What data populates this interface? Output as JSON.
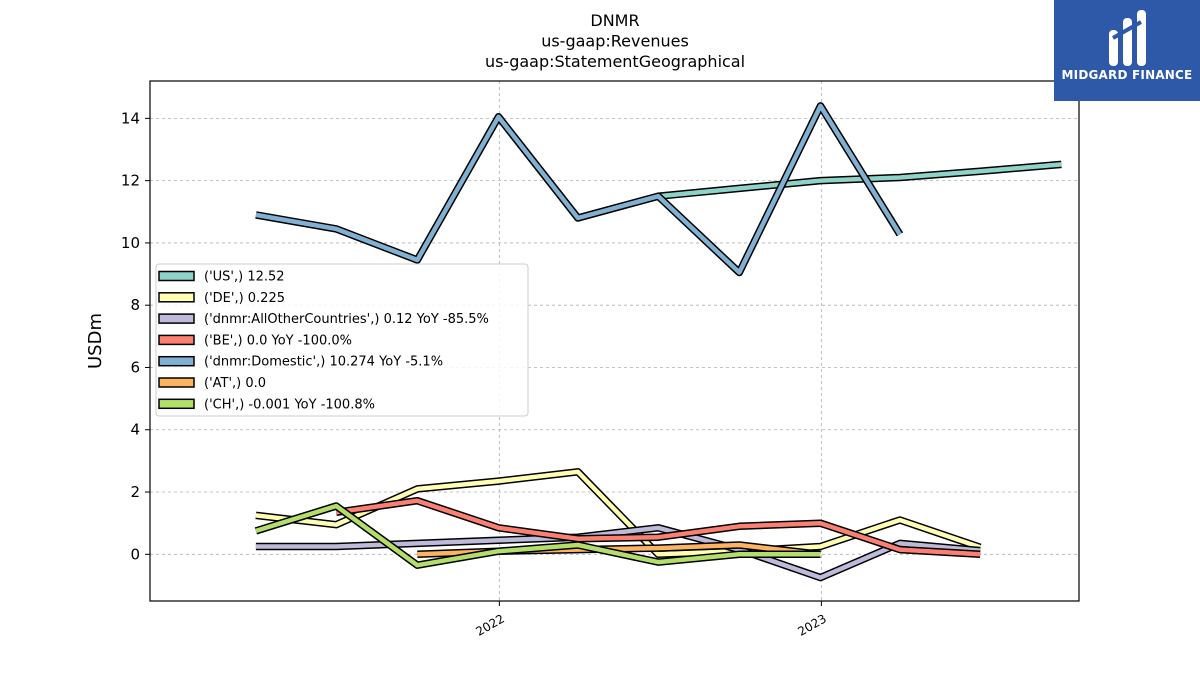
{
  "chart_data": {
    "type": "line",
    "title_lines": [
      "DNMR",
      "us-gaap:Revenues",
      "us-gaap:StatementGeographical"
    ],
    "xlabel": "",
    "ylabel": "USDm",
    "x_ticks": [
      "2022",
      "2023"
    ],
    "y_ticks": [
      "0",
      "2",
      "4",
      "6",
      "8",
      "10",
      "12",
      "14"
    ],
    "ylim": [
      -1.5,
      15.2
    ],
    "grid": true,
    "legend_position": "center-left",
    "series": [
      {
        "name": "('US',) 12.52",
        "color": "#8dd3c7",
        "x": [
          "2022-06-30",
          "2022-09-30",
          "2022-12-31",
          "2023-03-31",
          "2023-06-30",
          "2023-09-30"
        ],
        "y": [
          11.5,
          11.75,
          12.0,
          12.1,
          12.3,
          12.52
        ]
      },
      {
        "name": "('DE',) 0.225",
        "color": "#ffffb3",
        "x": [
          "2021-03-31",
          "2021-06-30",
          "2021-09-30",
          "2021-12-31",
          "2022-03-31",
          "2022-06-30",
          "2022-09-30",
          "2022-12-31",
          "2023-03-31",
          "2023-06-30"
        ],
        "y": [
          1.25,
          0.95,
          2.1,
          2.35,
          2.65,
          0.0,
          0.1,
          0.25,
          1.1,
          0.225
        ]
      },
      {
        "name": "('dnmr:AllOtherCountries',) 0.12 YoY -85.5%",
        "color": "#bebada",
        "x": [
          "2021-03-31",
          "2021-06-30",
          "2021-09-30",
          "2021-12-31",
          "2022-03-31",
          "2022-06-30",
          "2022-09-30",
          "2022-12-31",
          "2023-03-31",
          "2023-06-30"
        ],
        "y": [
          0.25,
          0.25,
          0.35,
          0.45,
          0.55,
          0.85,
          0.15,
          -0.75,
          0.35,
          0.12
        ]
      },
      {
        "name": "('BE',) 0.0 YoY -100.0%",
        "color": "#fb8072",
        "x": [
          "2021-06-30",
          "2021-09-30",
          "2021-12-31",
          "2022-03-31",
          "2022-06-30",
          "2022-09-30",
          "2022-12-31",
          "2023-03-31",
          "2023-06-30"
        ],
        "y": [
          1.35,
          1.72,
          0.85,
          0.5,
          0.55,
          0.9,
          1.0,
          0.15,
          0.0
        ]
      },
      {
        "name": "('dnmr:Domestic',) 10.274 YoY -5.1%",
        "color": "#80b1d3",
        "x": [
          "2021-03-31",
          "2021-06-30",
          "2021-09-30",
          "2021-12-31",
          "2022-03-31",
          "2022-06-30",
          "2022-09-30",
          "2022-12-31",
          "2023-03-31"
        ],
        "y": [
          10.9,
          10.45,
          9.45,
          14.05,
          10.8,
          11.5,
          9.05,
          14.4,
          10.274
        ]
      },
      {
        "name": "('AT',) 0.0",
        "color": "#fdb462",
        "x": [
          "2021-09-30",
          "2021-12-31",
          "2022-03-31",
          "2022-06-30",
          "2022-09-30",
          "2022-12-31"
        ],
        "y": [
          0.0,
          0.1,
          0.15,
          0.2,
          0.3,
          0.0
        ]
      },
      {
        "name": "('CH',) -0.001 YoY -100.8%",
        "color": "#b3de69",
        "x": [
          "2021-03-31",
          "2021-06-30",
          "2021-09-30",
          "2021-12-31",
          "2022-03-31",
          "2022-06-30",
          "2022-09-30",
          "2022-12-31"
        ],
        "y": [
          0.75,
          1.55,
          -0.35,
          0.1,
          0.3,
          -0.25,
          0.0,
          -0.001
        ]
      }
    ]
  },
  "logo": {
    "text": "MIDGARD FINANCE",
    "bg_color": "#2d59a8"
  }
}
